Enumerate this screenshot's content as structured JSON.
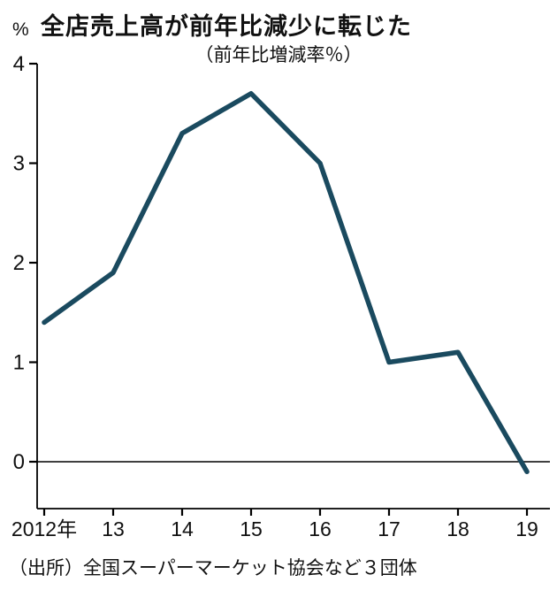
{
  "chart_data": {
    "type": "line",
    "title": "全店売上高が前年比減少に転じた",
    "subtitle": "（前年比増減率％）",
    "unit_label": "%",
    "categories": [
      "2012年",
      "13",
      "14",
      "15",
      "16",
      "17",
      "18",
      "19"
    ],
    "values": [
      1.4,
      1.9,
      3.3,
      3.7,
      3.0,
      1.0,
      1.1,
      -0.1
    ],
    "yticks": [
      0,
      1,
      2,
      3,
      4
    ],
    "ylim": [
      -0.5,
      4.2
    ],
    "grid": false,
    "zero_line": true,
    "legend": "none",
    "line_color": "#1a4a5f",
    "axis_color": "#000000",
    "source": "（出所）全国スーパーマーケット協会など３団体"
  }
}
